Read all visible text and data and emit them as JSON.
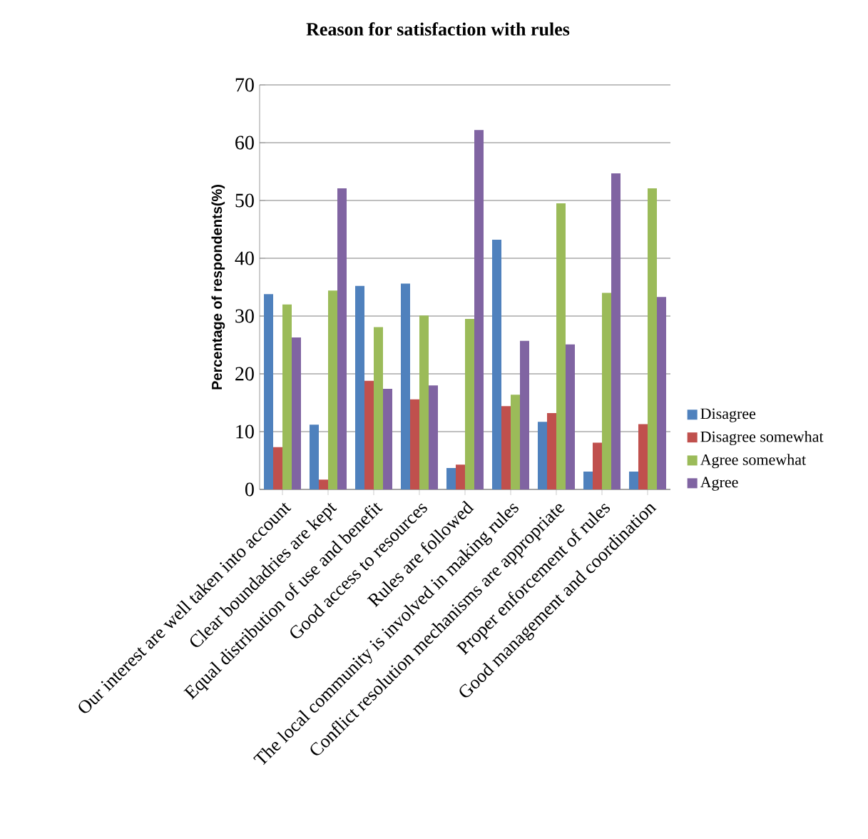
{
  "chart_data": {
    "type": "bar",
    "title": "Reason for satisfaction with rules",
    "ylabel": "Percentage of respondents(%)",
    "categories": [
      "Our interest are well taken into account",
      "Clear boundadries are kept",
      "Equal distribution of use and benefit",
      "Good access to resources",
      "Rules are followed",
      "The local community is involved in making rules",
      "Conflict resolution mechanisms are appropriate",
      "Proper enforcement of rules",
      "Good management and coordination"
    ],
    "series": [
      {
        "name": "Disagree",
        "color": "#4f81bd",
        "values": [
          33.8,
          11.2,
          35.2,
          35.6,
          3.7,
          43.2,
          11.7,
          3.1,
          3.1
        ]
      },
      {
        "name": "Disagree somewhat",
        "color": "#c0504d",
        "values": [
          7.3,
          1.7,
          18.8,
          15.6,
          4.3,
          14.4,
          13.2,
          8.1,
          11.3
        ]
      },
      {
        "name": "Agree somewhat",
        "color": "#9bbb59",
        "values": [
          32.0,
          34.4,
          28.1,
          30.1,
          29.5,
          16.4,
          49.5,
          34.0,
          52.1
        ]
      },
      {
        "name": "Agree",
        "color": "#8064a2",
        "values": [
          26.3,
          52.1,
          17.4,
          18.0,
          62.2,
          25.7,
          25.1,
          54.7,
          33.3
        ]
      }
    ],
    "ylim": [
      0,
      70
    ],
    "yticks": [
      0,
      10,
      20,
      30,
      40,
      50,
      60,
      70
    ],
    "grid": "y",
    "legend": "right"
  }
}
